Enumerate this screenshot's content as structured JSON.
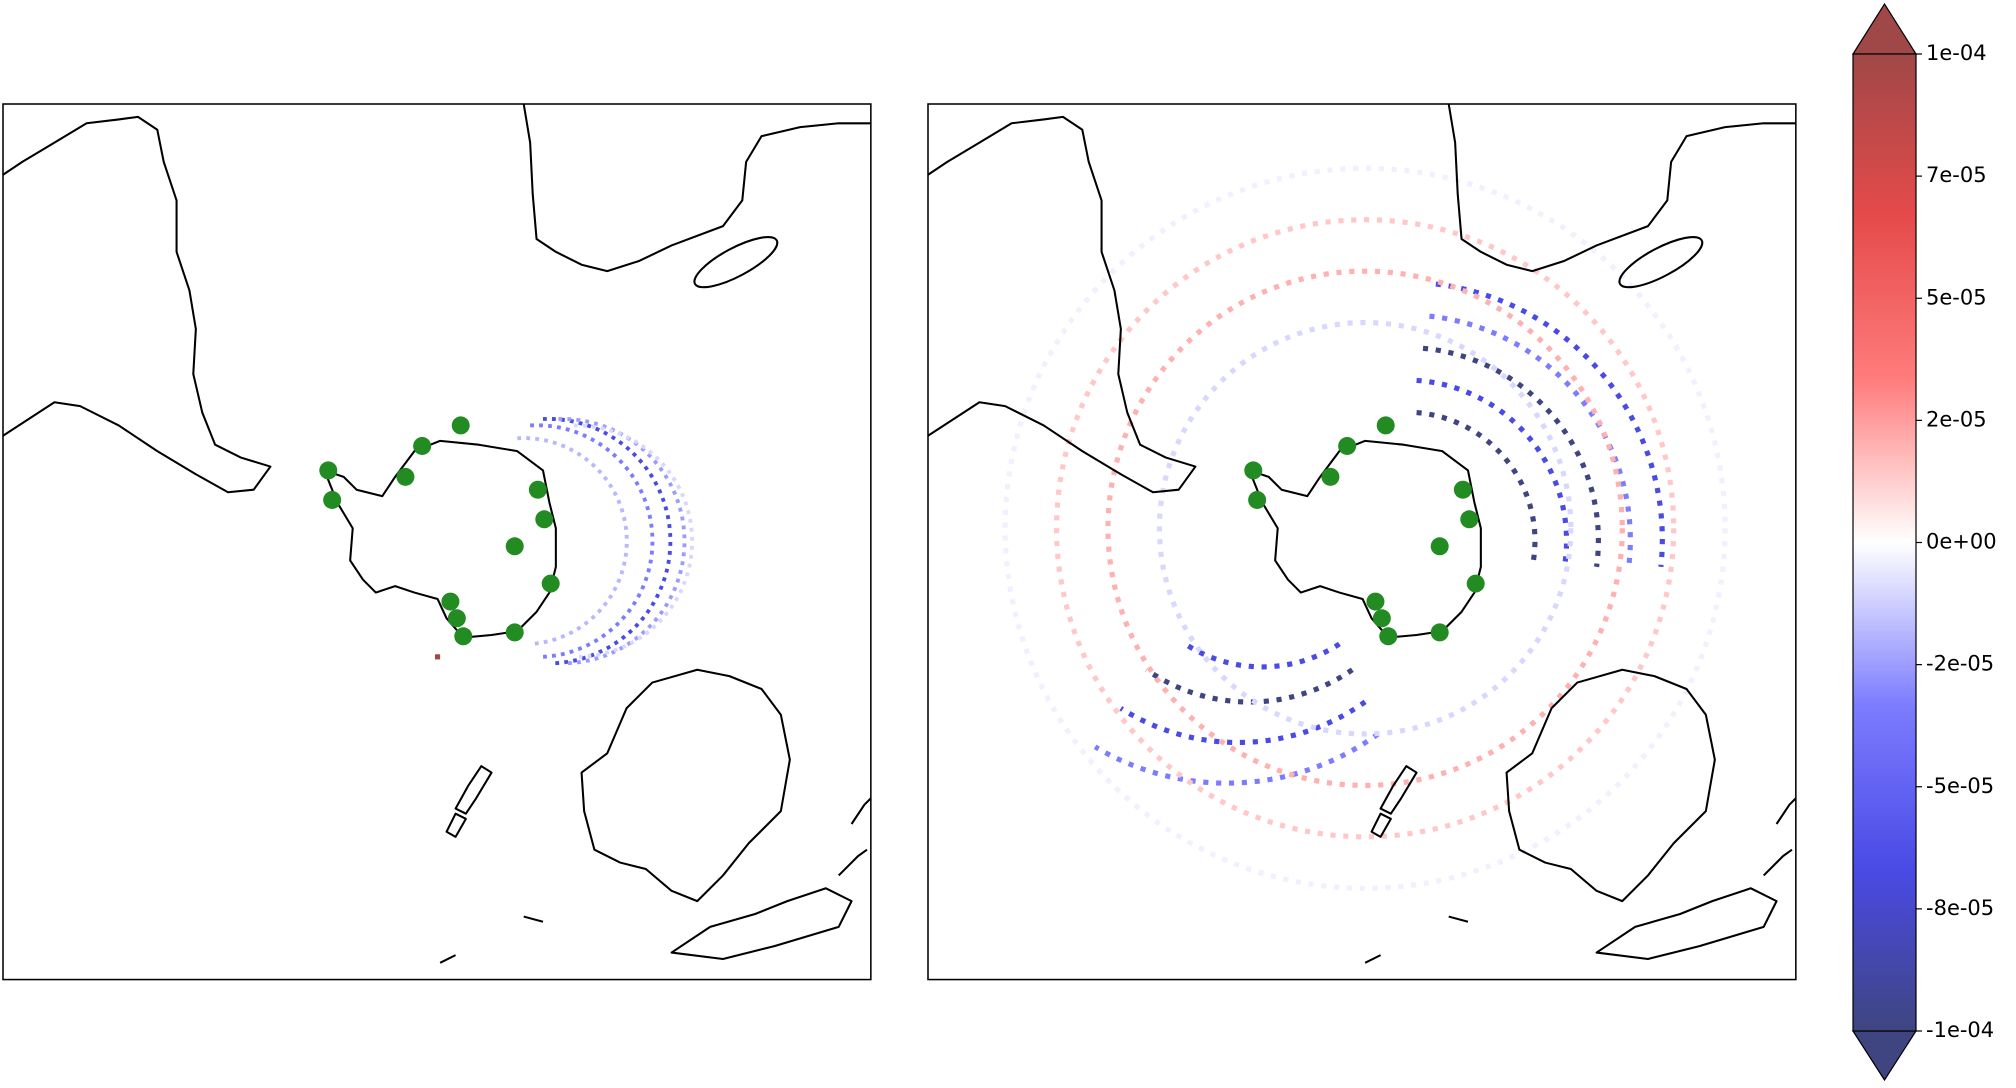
{
  "colorbar": {
    "range": [
      -0.0001,
      0.0001
    ],
    "colors": [
      "#3f4580",
      "#4a4ae6",
      "#7c7cff",
      "#ffffff",
      "#ff7c7c",
      "#e64a4a",
      "#a04848"
    ],
    "ticks": [
      {
        "value": -0.0001,
        "label": "-1e-04"
      },
      {
        "value": -7.5e-05,
        "label": "-8e-05"
      },
      {
        "value": -5e-05,
        "label": "-5e-05"
      },
      {
        "value": -2.5e-05,
        "label": "-2e-05"
      },
      {
        "value": 0,
        "label": "0e+00"
      },
      {
        "value": 2.5e-05,
        "label": "2e-05"
      },
      {
        "value": 5e-05,
        "label": "5e-05"
      },
      {
        "value": 7.5e-05,
        "label": "7e-05"
      },
      {
        "value": 0.0001,
        "label": "1e-04"
      }
    ]
  }
}
